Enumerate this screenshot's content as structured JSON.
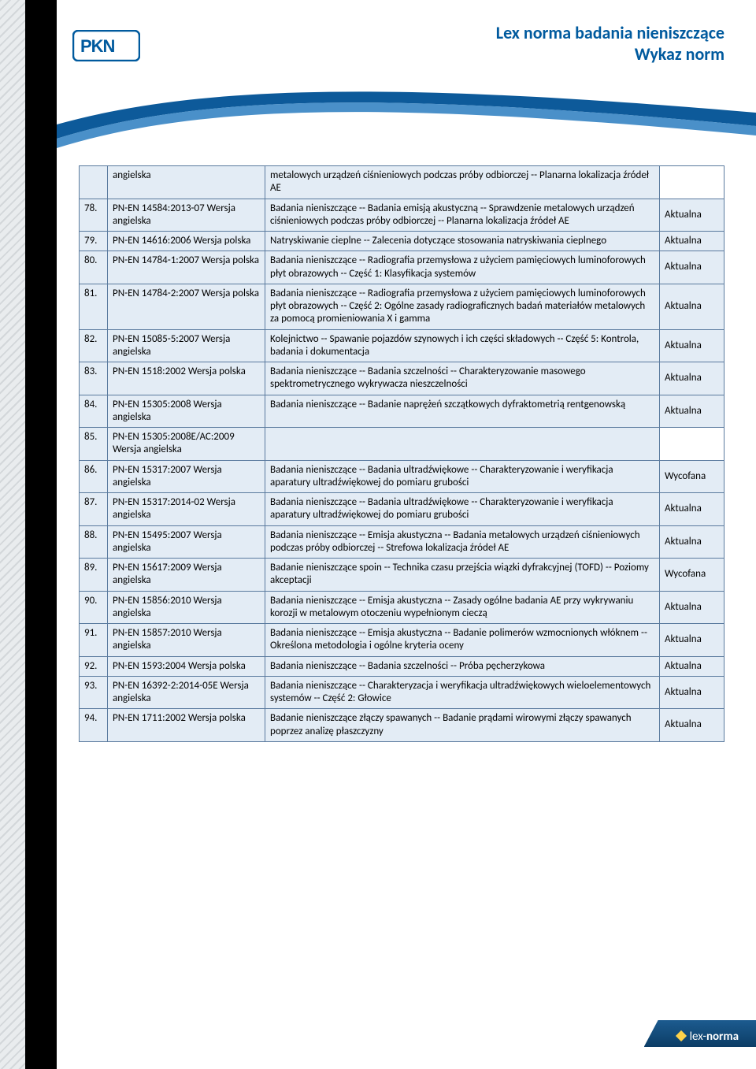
{
  "header": {
    "title_line1": "Lex norma badania nieniszczące",
    "title_line2": "Wykaz norm",
    "title_color": "#005a9e"
  },
  "footer": {
    "brand_prefix": "lex-",
    "brand_bold": "norma"
  },
  "table": {
    "rows": [
      {
        "num": "",
        "standard": "angielska",
        "desc": "metalowych urządzeń ciśnieniowych podczas próby odbiorczej -- Planarna lokalizacja źródeł AE",
        "status": ""
      },
      {
        "num": "78.",
        "standard": "PN-EN 14584:2013-07 Wersja angielska",
        "desc": "Badania nieniszczące -- Badania emisją akustyczną -- Sprawdzenie metalowych urządzeń ciśnieniowych podczas próby odbiorczej -- Planarna lokalizacja źródeł AE",
        "status": "Aktualna"
      },
      {
        "num": "79.",
        "standard": "PN-EN 14616:2006 Wersja polska",
        "desc": "Natryskiwanie cieplne -- Zalecenia dotyczące stosowania natryskiwania cieplnego",
        "status": "Aktualna"
      },
      {
        "num": "80.",
        "standard": "PN-EN 14784-1:2007 Wersja polska",
        "desc": "Badania nieniszczące -- Radiografia przemysłowa z użyciem pamięciowych luminoforowych płyt obrazowych -- Część 1: Klasyfikacja systemów",
        "status": "Aktualna"
      },
      {
        "num": "81.",
        "standard": "PN-EN 14784-2:2007 Wersja polska",
        "desc": "Badania nieniszczące -- Radiografia przemysłowa z użyciem pamięciowych luminoforowych płyt obrazowych -- Część 2: Ogólne zasady radiograficznych badań materiałów metalowych za pomocą promieniowania X i gamma",
        "status": "Aktualna"
      },
      {
        "num": "82.",
        "standard": "PN-EN 15085-5:2007 Wersja angielska",
        "desc": "Kolejnictwo -- Spawanie pojazdów szynowych i ich części składowych -- Część 5: Kontrola, badania i dokumentacja",
        "status": "Aktualna"
      },
      {
        "num": "83.",
        "standard": "PN-EN 1518:2002 Wersja polska",
        "desc": "Badania nieniszczące -- Badania szczelności -- Charakteryzowanie masowego spektrometrycznego wykrywacza nieszczelności",
        "status": "Aktualna"
      },
      {
        "num": "84.",
        "standard": "PN-EN 15305:2008 Wersja angielska",
        "desc": "Badania nieniszczące -- Badanie naprężeń szczątkowych dyfraktometrią rentgenowską",
        "status": "Aktualna"
      },
      {
        "num": "85.",
        "standard": "PN-EN 15305:2008E/AC:2009 Wersja angielska",
        "desc": "",
        "status": ""
      },
      {
        "num": "86.",
        "standard": "PN-EN 15317:2007 Wersja angielska",
        "desc": "Badania nieniszczące -- Badania ultradźwiękowe -- Charakteryzowanie i weryfikacja aparatury ultradźwiękowej do pomiaru grubości",
        "status": "Wycofana"
      },
      {
        "num": "87.",
        "standard": "PN-EN 15317:2014-02 Wersja angielska",
        "desc": "Badania nieniszczące -- Badania ultradźwiękowe -- Charakteryzowanie i weryfikacja aparatury ultradźwiękowej do pomiaru grubości",
        "status": "Aktualna"
      },
      {
        "num": "88.",
        "standard": "PN-EN 15495:2007 Wersja angielska",
        "desc": "Badania nieniszczące -- Emisja akustyczna -- Badania metalowych urządzeń ciśnieniowych podczas próby odbiorczej -- Strefowa lokalizacja źródeł AE",
        "status": "Aktualna"
      },
      {
        "num": "89.",
        "standard": "PN-EN 15617:2009 Wersja angielska",
        "desc": "Badanie nieniszczące spoin -- Technika czasu przejścia wiązki dyfrakcyjnej (TOFD) -- Poziomy akceptacji",
        "status": "Wycofana"
      },
      {
        "num": "90.",
        "standard": "PN-EN 15856:2010 Wersja angielska",
        "desc": "Badania nieniszczące -- Emisja akustyczna -- Zasady ogólne badania AE przy wykrywaniu korozji w metalowym otoczeniu wypełnionym cieczą",
        "status": "Aktualna"
      },
      {
        "num": "91.",
        "standard": "PN-EN 15857:2010 Wersja angielska",
        "desc": "Badania nieniszczące -- Emisja akustyczna -- Badanie polimerów wzmocnionych włóknem -- Określona metodologia i ogólne kryteria oceny",
        "status": "Aktualna"
      },
      {
        "num": "92.",
        "standard": "PN-EN 1593:2004 Wersja polska",
        "desc": "Badania nieniszczące -- Badania szczelności -- Próba pęcherzykowa",
        "status": "Aktualna"
      },
      {
        "num": "93.",
        "standard": "PN-EN 16392-2:2014-05E Wersja angielska",
        "desc": "Badania nieniszczące -- Charakteryzacja i weryfikacja ultradźwiękowych wieloelementowych systemów -- Część 2: Głowice",
        "status": "Aktualna"
      },
      {
        "num": "94.",
        "standard": "PN-EN 1711:2002 Wersja polska",
        "desc": "Badanie nieniszczące złączy spawanych -- Badanie prądami wirowymi złączy spawanych poprzez analizę płaszczyzny",
        "status": "Aktualna"
      }
    ]
  }
}
